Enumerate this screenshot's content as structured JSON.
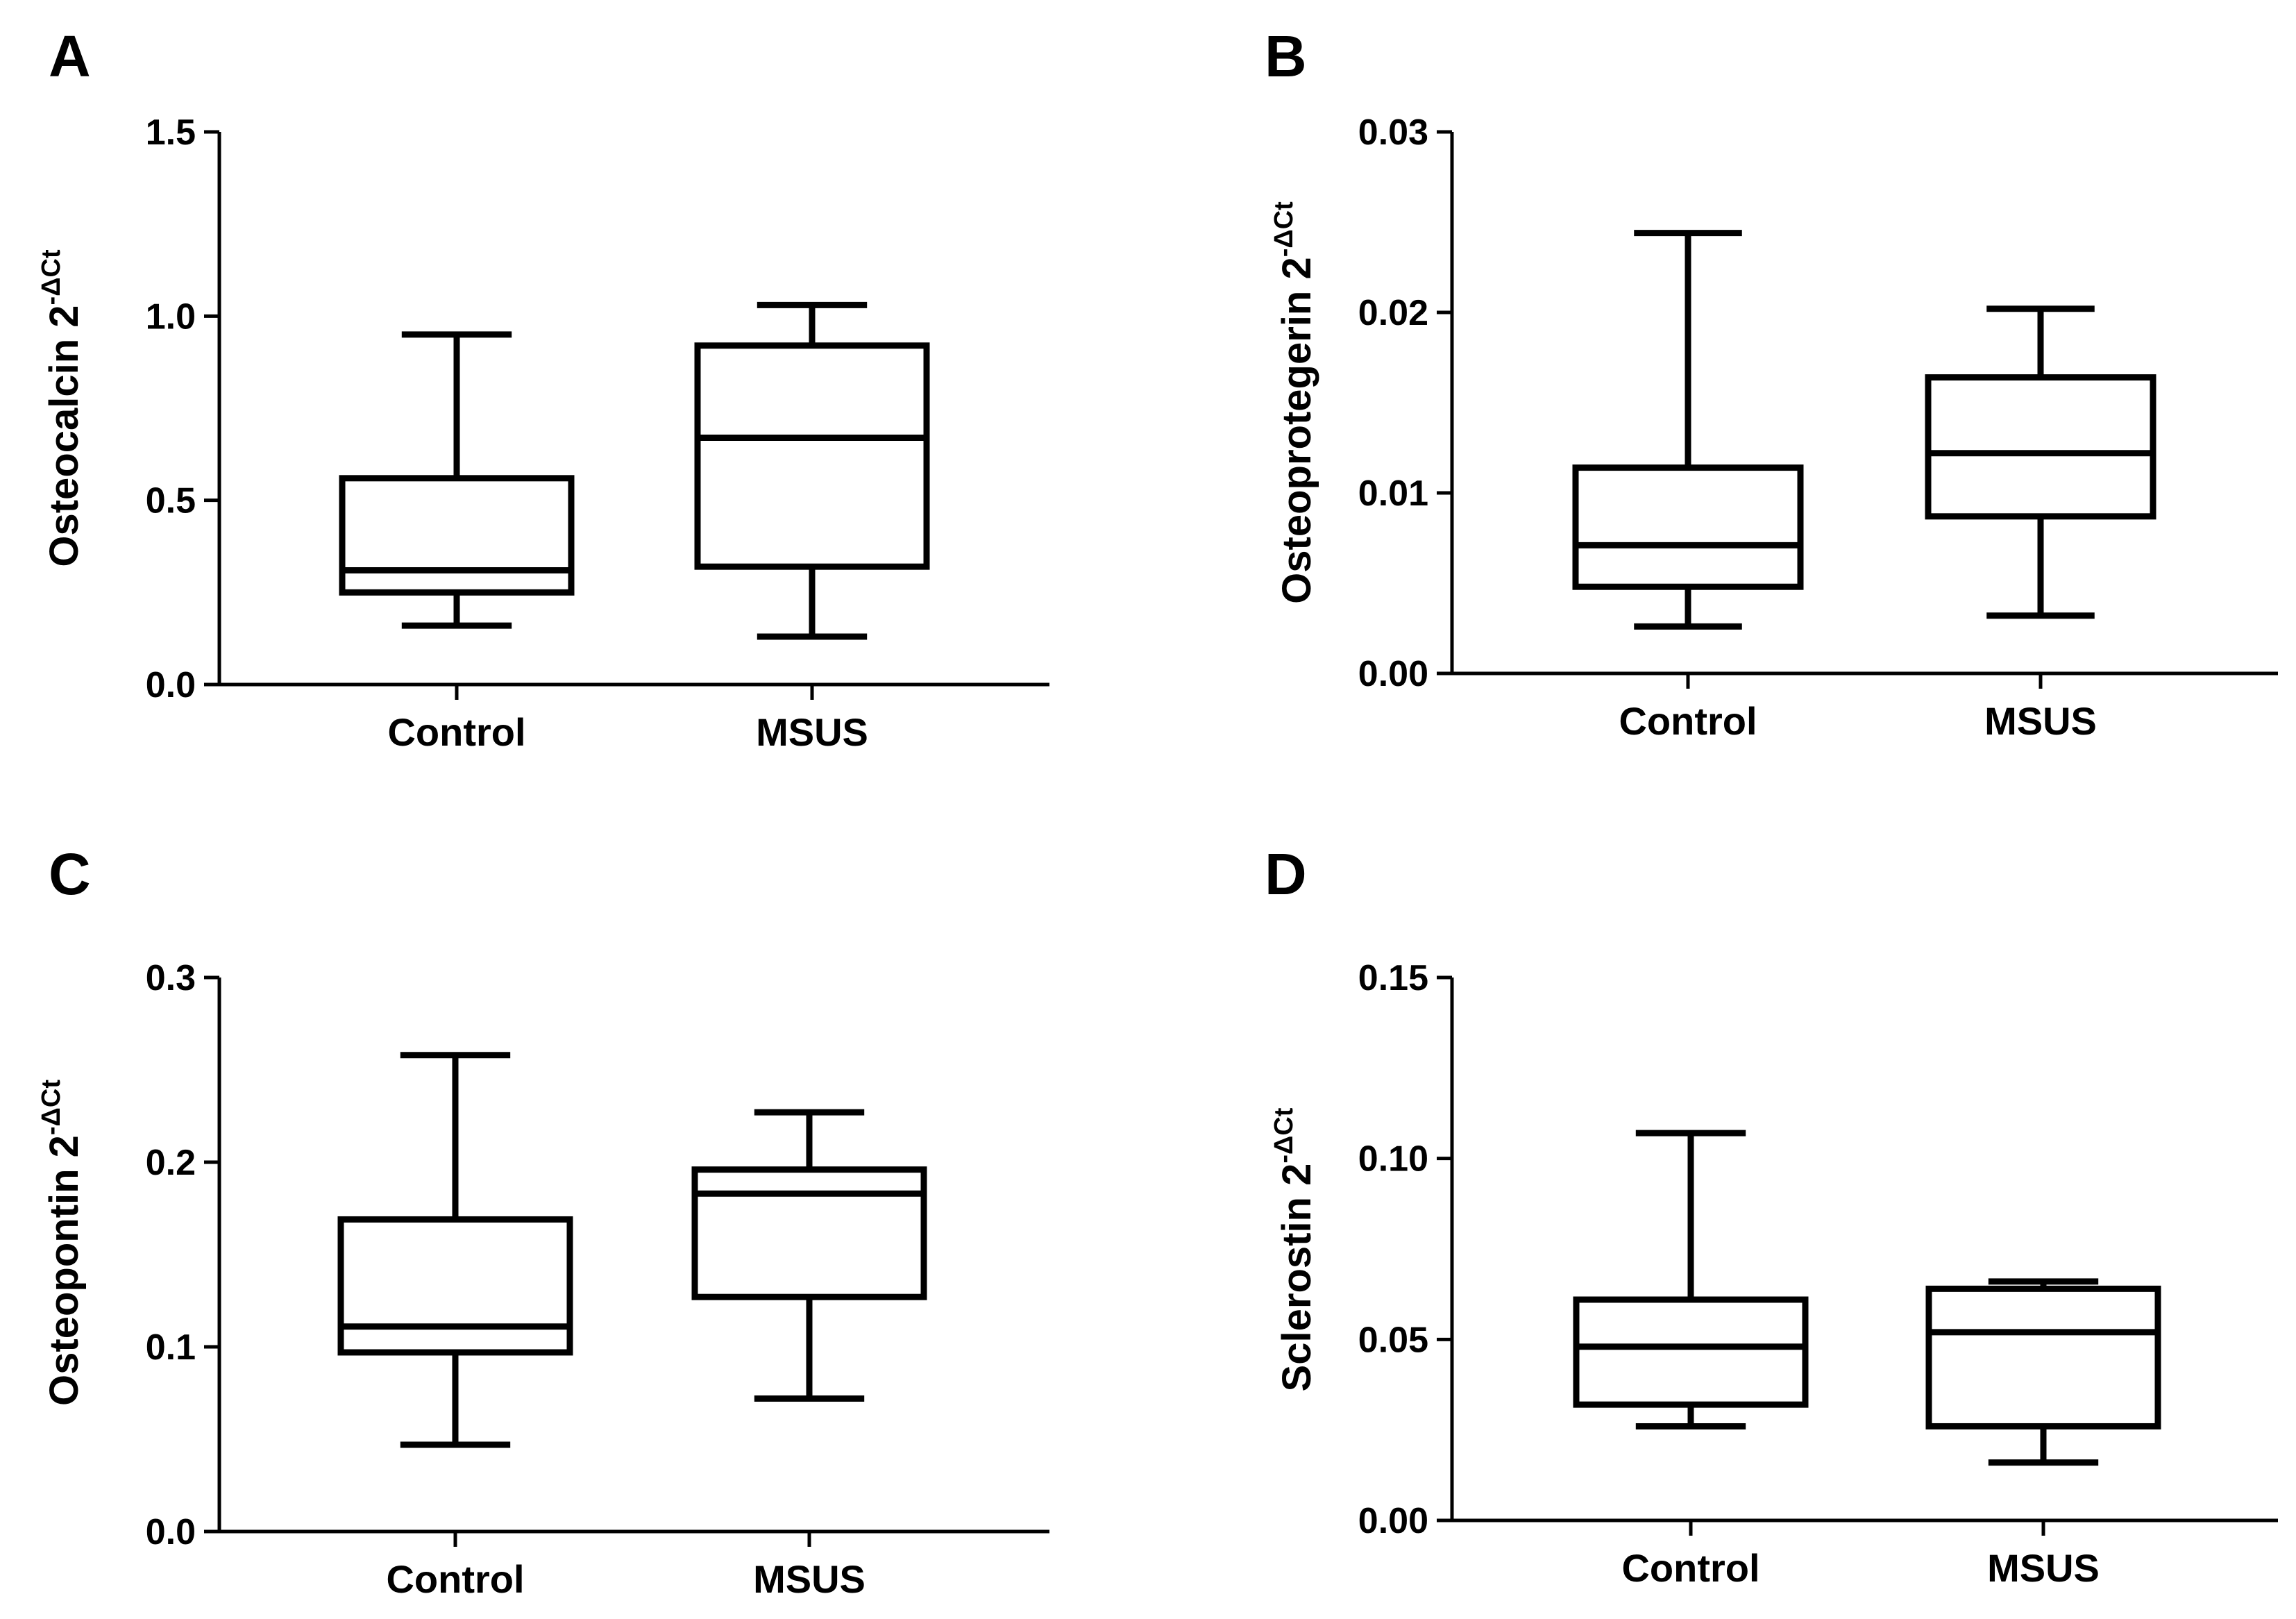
{
  "chart_data": [
    {
      "panel": "A",
      "type": "boxplot",
      "ylabel": "Osteocalcin 2",
      "ylabel_sup": "-ΔCt",
      "ylim": [
        0,
        1.5
      ],
      "yticks": [
        "0.0",
        "0.5",
        "1.0",
        "1.5"
      ],
      "categories": [
        "Control",
        "MSUS"
      ],
      "boxes": [
        {
          "name": "Control",
          "min": 0.16,
          "q1": 0.25,
          "median": 0.31,
          "q3": 0.56,
          "max": 0.95
        },
        {
          "name": "MSUS",
          "min": 0.13,
          "q1": 0.32,
          "median": 0.67,
          "q3": 0.92,
          "max": 1.03
        }
      ]
    },
    {
      "panel": "B",
      "type": "boxplot",
      "ylabel": "Osteoprotegerin 2",
      "ylabel_sup": "-ΔCt",
      "ylim": [
        0,
        0.03
      ],
      "yticks": [
        "0.00",
        "0.01",
        "0.02",
        "0.03"
      ],
      "categories": [
        "Control",
        "MSUS"
      ],
      "boxes": [
        {
          "name": "Control",
          "min": 0.0026,
          "q1": 0.0048,
          "median": 0.0071,
          "q3": 0.0114,
          "max": 0.0244
        },
        {
          "name": "MSUS",
          "min": 0.0032,
          "q1": 0.0087,
          "median": 0.0122,
          "q3": 0.0164,
          "max": 0.0202
        }
      ]
    },
    {
      "panel": "C",
      "type": "boxplot",
      "ylabel": "Osteopontin 2",
      "ylabel_sup": "-ΔCt",
      "ylim": [
        0,
        0.3
      ],
      "yticks": [
        "0.0",
        "0.1",
        "0.2",
        "0.3"
      ],
      "categories": [
        "Control",
        "MSUS"
      ],
      "boxes": [
        {
          "name": "Control",
          "min": 0.047,
          "q1": 0.097,
          "median": 0.111,
          "q3": 0.169,
          "max": 0.258
        },
        {
          "name": "MSUS",
          "min": 0.072,
          "q1": 0.127,
          "median": 0.183,
          "q3": 0.196,
          "max": 0.227
        }
      ]
    },
    {
      "panel": "D",
      "type": "boxplot",
      "ylabel": "Sclerostin 2",
      "ylabel_sup": "-ΔCt",
      "ylim": [
        0,
        0.15
      ],
      "yticks": [
        "0.00",
        "0.05",
        "0.10",
        "0.15"
      ],
      "categories": [
        "Control",
        "MSUS"
      ],
      "boxes": [
        {
          "name": "Control",
          "min": 0.026,
          "q1": 0.032,
          "median": 0.048,
          "q3": 0.061,
          "max": 0.107
        },
        {
          "name": "MSUS",
          "min": 0.016,
          "q1": 0.026,
          "median": 0.052,
          "q3": 0.064,
          "max": 0.066
        }
      ]
    }
  ]
}
